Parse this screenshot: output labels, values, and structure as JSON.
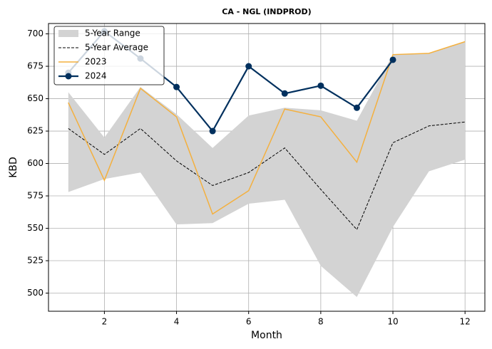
{
  "chart_data": {
    "type": "line",
    "title": "CA - NGL (INDPROD)",
    "xlabel": "Month",
    "ylabel": "KBD",
    "x": [
      1,
      2,
      3,
      4,
      5,
      6,
      7,
      8,
      9,
      10,
      11,
      12
    ],
    "series": [
      {
        "name": "5-Year Range",
        "color": "#d3d3d3",
        "upper": [
          655,
          620,
          659,
          638,
          612,
          637,
          643,
          641,
          633,
          684,
          685,
          694
        ],
        "lower": [
          578,
          588,
          593,
          553,
          554,
          569,
          572,
          521,
          497,
          551,
          594,
          603
        ]
      },
      {
        "name": "5-Year Average",
        "color": "#000000",
        "dashed": true,
        "values": [
          627,
          607,
          627,
          602,
          583,
          593,
          612,
          580,
          549,
          616,
          629,
          632
        ]
      },
      {
        "name": "2023",
        "color": "#f4b03e",
        "values": [
          647,
          587,
          658,
          636,
          561,
          579,
          642,
          636,
          601,
          684,
          685,
          694
        ]
      },
      {
        "name": "2024",
        "color": "#00305e",
        "markers": true,
        "values": [
          670,
          702,
          681,
          659,
          625,
          675,
          654,
          660,
          643,
          680,
          null,
          null
        ]
      }
    ],
    "xlim": [
      0.45,
      12.55
    ],
    "ylim": [
      486,
      708
    ],
    "xticks": [
      2,
      4,
      6,
      8,
      10,
      12
    ],
    "yticks": [
      500,
      525,
      550,
      575,
      600,
      625,
      650,
      675,
      700
    ],
    "grid": true,
    "legend": "upper left"
  }
}
